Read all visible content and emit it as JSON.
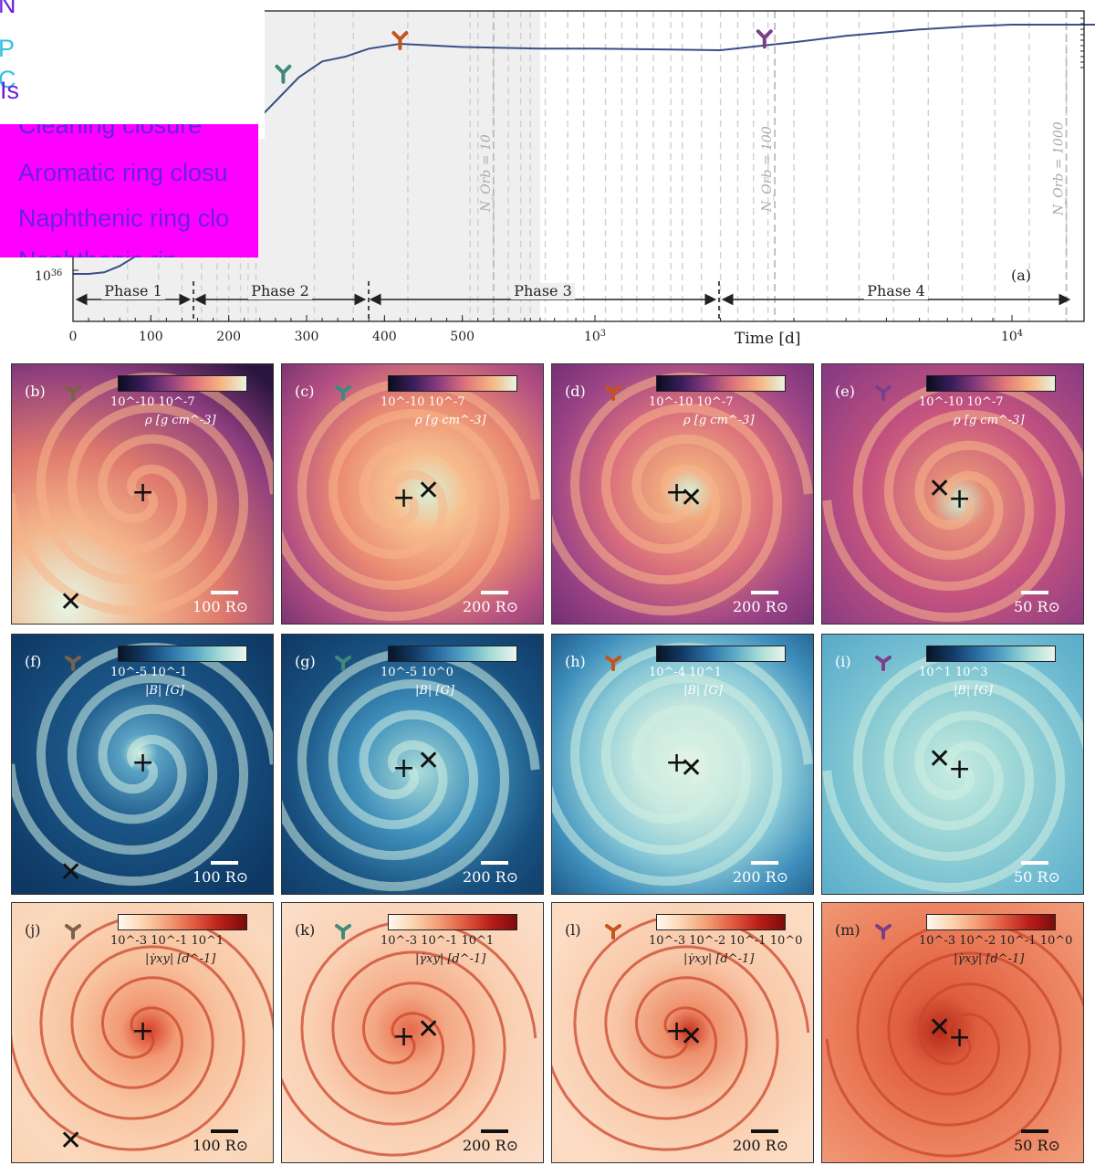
{
  "chart_data": [
    {
      "type": "line",
      "panel_label": "(a)",
      "xlabel": "Time   [d]",
      "x_ticks_linear": [
        "0",
        "100",
        "200",
        "300",
        "400",
        "500"
      ],
      "x_ticks_log": [
        "10^3",
        "10^4"
      ],
      "y_tick": "10^36",
      "series": [
        {
          "name": "main",
          "color": "#3a4f86",
          "x": [
            0,
            10,
            20,
            40,
            60,
            80,
            100,
            140,
            170,
            200,
            230,
            260,
            290,
            320,
            350,
            380,
            420,
            460,
            500,
            600,
            800,
            1000,
            2000,
            3000,
            4000,
            6000,
            8000,
            10000,
            20000
          ],
          "y": [
            0.97,
            0.97,
            0.97,
            0.98,
            1.02,
            1.08,
            1.15,
            1.35,
            1.5,
            1.7,
            1.9,
            2.05,
            2.2,
            2.3,
            2.33,
            2.38,
            2.41,
            2.4,
            2.39,
            2.38,
            2.38,
            2.38,
            2.37,
            2.42,
            2.46,
            2.5,
            2.52,
            2.53,
            2.53
          ]
        }
      ],
      "annotations": [
        "N_Orb = 10",
        "N_Orb = 100",
        "N_Orb = 1000"
      ],
      "phases": [
        "Phase 1",
        "Phase 2",
        "Phase 3",
        "Phase 4"
      ],
      "markers": [
        {
          "name": "marker-c",
          "color": "#3f8a7c",
          "x": 270
        },
        {
          "name": "marker-d",
          "color": "#c4541a",
          "x": 420
        },
        {
          "name": "marker-i",
          "color": "#7a3f88",
          "x": 2550
        }
      ]
    }
  ],
  "legend_overlay": {
    "lines": [
      "N",
      "P",
      "C",
      "Is",
      "Cleaning closure",
      "Aromatic ring closu",
      "Naphthenic ring clo",
      "Naphthenic rin"
    ]
  },
  "panels": {
    "row1": [
      {
        "label": "(b)",
        "marker": "#7a6248",
        "ticks": "10^-10      10^-7",
        "cbar_label": "ρ [g cm^-3]",
        "scale": "100 R⊙"
      },
      {
        "label": "(c)",
        "marker": "#3f8a7c",
        "ticks": "10^-10      10^-7",
        "cbar_label": "ρ [g cm^-3]",
        "scale": "200 R⊙"
      },
      {
        "label": "(d)",
        "marker": "#c4541a",
        "ticks": "10^-10      10^-7",
        "cbar_label": "ρ [g cm^-3]",
        "scale": "200 R⊙"
      },
      {
        "label": "(e)",
        "marker": "#7a3f88",
        "ticks": "10^-10      10^-7",
        "cbar_label": "ρ [g cm^-3]",
        "scale": "50 R⊙"
      }
    ],
    "row2": [
      {
        "label": "(f)",
        "marker": "#7a6248",
        "ticks": "10^-5  10^-1",
        "cbar_label": "|B| [G]",
        "scale": "100 R⊙"
      },
      {
        "label": "(g)",
        "marker": "#3f8a7c",
        "ticks": "10^-5    10^0",
        "cbar_label": "|B| [G]",
        "scale": "200 R⊙"
      },
      {
        "label": "(h)",
        "marker": "#c4541a",
        "ticks": "10^-4    10^1",
        "cbar_label": "|B| [G]",
        "scale": "200 R⊙"
      },
      {
        "label": "(i)",
        "marker": "#7a3f88",
        "ticks": "10^1    10^3",
        "cbar_label": "|B| [G]",
        "scale": "50 R⊙"
      }
    ],
    "row3": [
      {
        "label": "(j)",
        "marker": "#7a6248",
        "ticks": "10^-3   10^-1   10^1",
        "cbar_label": "|γ̇xy|   [d^-1]",
        "scale": "100 R⊙"
      },
      {
        "label": "(k)",
        "marker": "#3f8a7c",
        "ticks": "10^-3   10^-1   10^1",
        "cbar_label": "|γ̇xy|   [d^-1]",
        "scale": "200 R⊙"
      },
      {
        "label": "(l)",
        "marker": "#c4541a",
        "ticks": "10^-3 10^-2 10^-1 10^0",
        "cbar_label": "|γ̇xy|   [d^-1]",
        "scale": "200 R⊙"
      },
      {
        "label": "(m)",
        "marker": "#7a3f88",
        "ticks": "10^-3 10^-2 10^-1 10^0",
        "cbar_label": "|γ̇xy|   [d^-1]",
        "scale": "50 R⊙"
      }
    ]
  }
}
